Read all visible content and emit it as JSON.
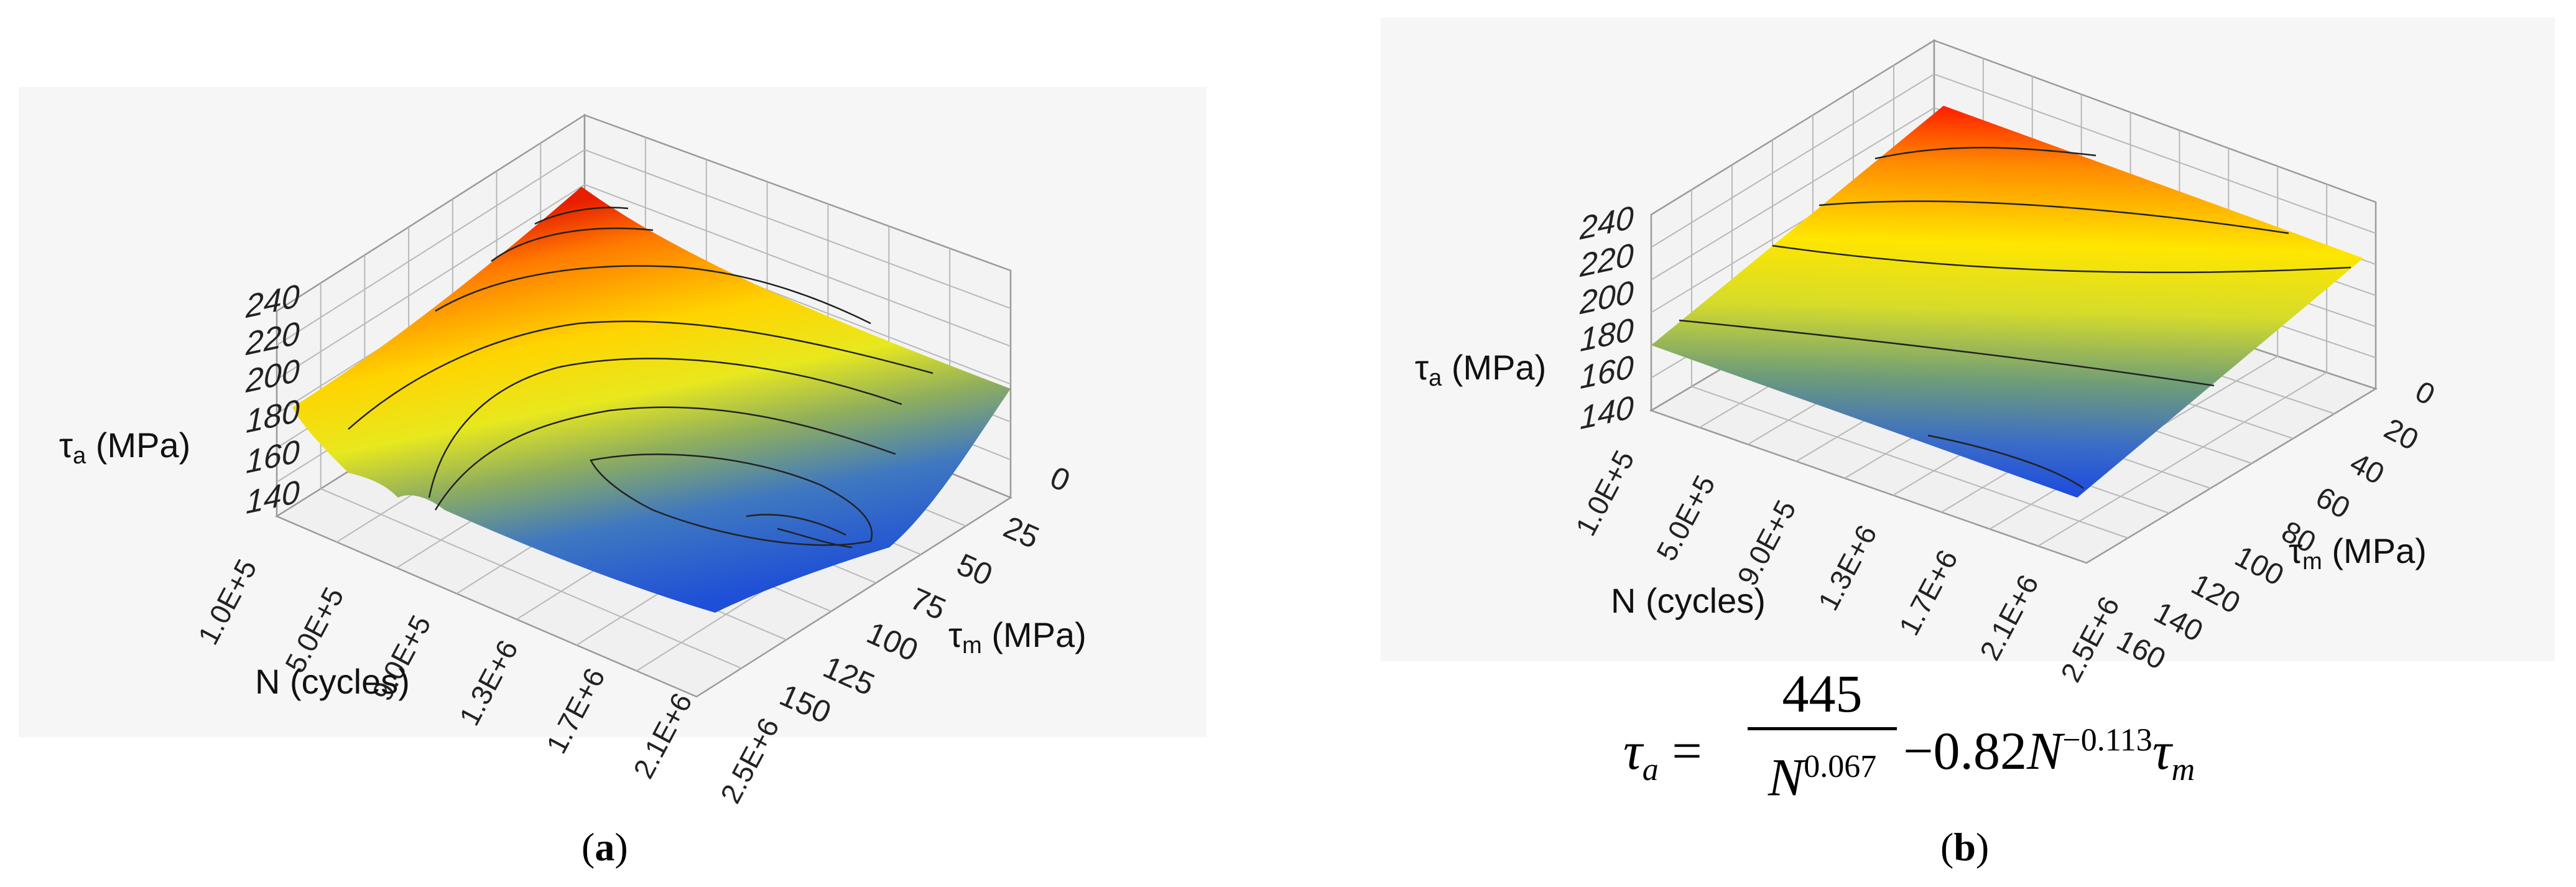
{
  "chart_data": [
    {
      "type": "surface3d",
      "panel_label": "a",
      "zlabel_main": "τ",
      "zlabel_sub": "a",
      "zlabel_unit": "(MPa)",
      "xlabel": "N (cycles)",
      "ylabel_main": "τ",
      "ylabel_sub": "m",
      "ylabel_unit": "(MPa)",
      "z_ticks": [
        "140",
        "160",
        "180",
        "200",
        "220",
        "240"
      ],
      "zlim": [
        140,
        240
      ],
      "x_ticks": [
        "1.0E+5",
        "5.0E+5",
        "9.0E+5",
        "1.3E+6",
        "1.7E+6",
        "2.1E+6",
        "2.5E+6"
      ],
      "y_ticks": [
        "0",
        "25",
        "50",
        "75",
        "100",
        "125",
        "150"
      ],
      "surface": "experimental fatigue data surface",
      "colormap": [
        "#1e50d6",
        "#2f6fc8",
        "#7aa56a",
        "#d8e02a",
        "#ffea00",
        "#ffb000",
        "#ff6a00",
        "#e81e00"
      ]
    },
    {
      "type": "surface3d",
      "panel_label": "b",
      "zlabel_main": "τ",
      "zlabel_sub": "a",
      "zlabel_unit": "(MPa)",
      "xlabel": "N (cycles)",
      "ylabel_main": "τ",
      "ylabel_sub": "m",
      "ylabel_unit": "(MPa)",
      "z_ticks": [
        "140",
        "160",
        "180",
        "200",
        "220",
        "240"
      ],
      "zlim": [
        140,
        240
      ],
      "x_ticks": [
        "1.0E+5",
        "5.0E+5",
        "9.0E+5",
        "1.3E+6",
        "1.7E+6",
        "2.1E+6",
        "2.5E+6"
      ],
      "y_ticks": [
        "0",
        "20",
        "40",
        "60",
        "80",
        "100",
        "120",
        "140",
        "160"
      ],
      "surface": "fitted plane",
      "colormap": [
        "#1e50d6",
        "#2f6fc8",
        "#7aa56a",
        "#d8e02a",
        "#ffea00",
        "#ffb000",
        "#ff6a00",
        "#e81e00"
      ]
    }
  ],
  "formula": {
    "lhs": "τ",
    "lhs_sub": "a",
    "eq": "=",
    "numerator": "445",
    "den_base": "N",
    "den_exp": "0.067",
    "minus_coef": "−0.82",
    "term_base": "N",
    "term_exp": "−0.113",
    "term_var": "τ",
    "term_var_sub": "m"
  },
  "captions": {
    "a": {
      "open": "(",
      "letter": "a",
      "close": ")"
    },
    "b": {
      "open": "(",
      "letter": "b",
      "close": ")"
    }
  }
}
